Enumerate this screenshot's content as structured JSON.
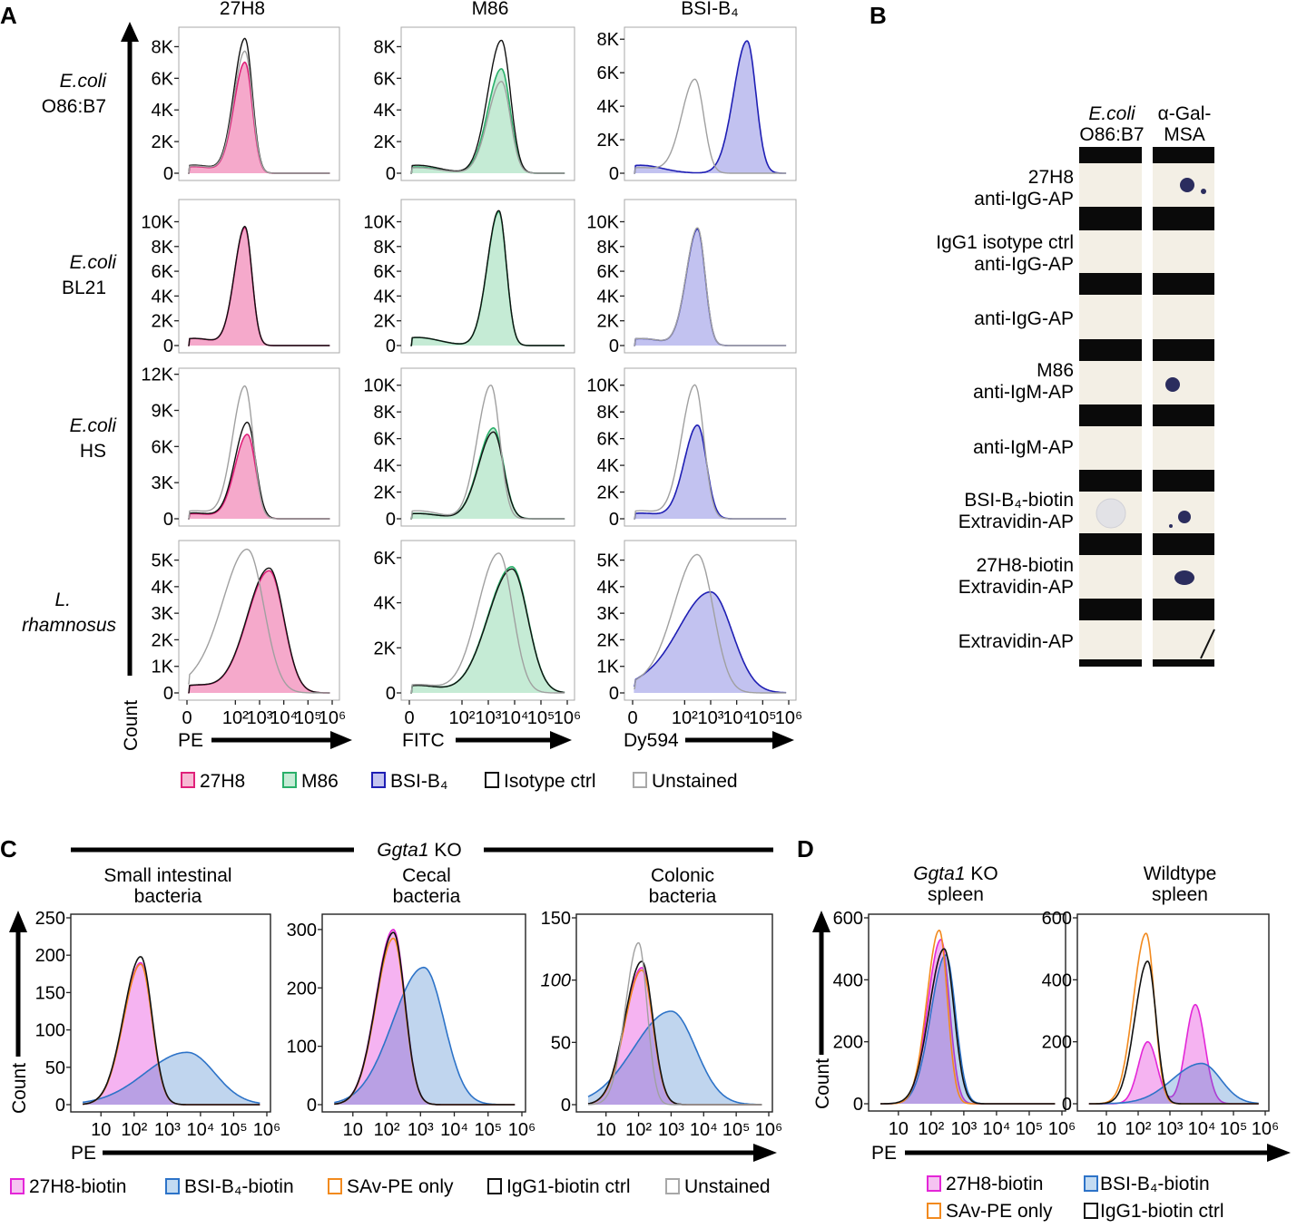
{
  "panels": {
    "a": "A",
    "b": "B",
    "c": "C",
    "d": "D"
  },
  "panel_a": {
    "columns": [
      "27H8",
      "M86",
      "BSI-B₄"
    ],
    "rows": [
      {
        "l1": "E.coli",
        "l2": "O86:B7"
      },
      {
        "l1": "E.coli",
        "l2": "BL21"
      },
      {
        "l1": "E.coli",
        "l2": "HS"
      },
      {
        "l1": "L.",
        "l2": "rhamnosus"
      }
    ],
    "count_label": "Count",
    "x_ticks": [
      "0",
      "10²",
      "10³",
      "10⁴",
      "10⁵",
      "10⁶"
    ],
    "x_labels": [
      "PE",
      "FITC",
      "Dy594"
    ],
    "legend": [
      {
        "label": "27H8",
        "color": "#e0217a"
      },
      {
        "label": "M86",
        "color": "#2ab06a"
      },
      {
        "label": "BSI-B₄",
        "color": "#1f1fb4"
      },
      {
        "label": "Isotype ctrl",
        "color": "#111111"
      },
      {
        "label": "Unstained",
        "color": "#a8a8a8"
      }
    ]
  },
  "chart_data": [
    {
      "type": "area",
      "panel": "A",
      "title": "27H8 — E.coli O86:B7",
      "xlabel": "PE",
      "ylabel": "Count",
      "yticks": [
        "0",
        "2K",
        "4K",
        "6K",
        "8K"
      ],
      "ylim": [
        0,
        9000
      ],
      "series": [
        {
          "name": "27H8",
          "mode": 2.4,
          "width": 0.4,
          "peak": 7000
        },
        {
          "name": "Isotype ctrl",
          "mode": 2.4,
          "width": 0.4,
          "peak": 8500
        },
        {
          "name": "Unstained",
          "mode": 2.4,
          "width": 0.4,
          "peak": 7700
        }
      ]
    },
    {
      "type": "area",
      "panel": "A",
      "title": "M86 — E.coli O86:B7",
      "xlabel": "FITC",
      "ylabel": "Count",
      "yticks": [
        "0",
        "2K",
        "4K",
        "6K",
        "8K"
      ],
      "ylim": [
        0,
        9000
      ],
      "series": [
        {
          "name": "M86",
          "mode": 3.5,
          "width": 0.45,
          "peak": 6600
        },
        {
          "name": "Isotype ctrl",
          "mode": 3.5,
          "width": 0.45,
          "peak": 8400
        },
        {
          "name": "Unstained",
          "mode": 3.5,
          "width": 0.45,
          "peak": 5800
        }
      ]
    },
    {
      "type": "area",
      "panel": "A",
      "title": "BSI-B₄ — E.coli O86:B7",
      "xlabel": "Dy594",
      "ylabel": "Count",
      "yticks": [
        "0",
        "2K",
        "4K",
        "6K",
        "8K"
      ],
      "ylim": [
        0,
        8500
      ],
      "series": [
        {
          "name": "BSI-B₄",
          "mode": 4.4,
          "width": 0.45,
          "peak": 7900
        },
        {
          "name": "Unstained",
          "mode": 2.4,
          "width": 0.45,
          "peak": 5600
        }
      ]
    },
    {
      "type": "area",
      "panel": "A",
      "title": "27H8 — E.coli BL21",
      "xlabel": "PE",
      "ylabel": "Count",
      "yticks": [
        "0",
        "2K",
        "4K",
        "6K",
        "8K",
        "10K"
      ],
      "ylim": [
        0,
        11500
      ],
      "series": [
        {
          "name": "27H8",
          "mode": 2.4,
          "width": 0.38,
          "peak": 9500
        },
        {
          "name": "Isotype ctrl",
          "mode": 2.4,
          "width": 0.38,
          "peak": 9600
        }
      ]
    },
    {
      "type": "area",
      "panel": "A",
      "title": "M86 — E.coli BL21",
      "xlabel": "FITC",
      "ylabel": "Count",
      "yticks": [
        "0",
        "2K",
        "4K",
        "6K",
        "8K",
        "10K"
      ],
      "ylim": [
        0,
        11500
      ],
      "series": [
        {
          "name": "M86",
          "mode": 3.4,
          "width": 0.38,
          "peak": 10800
        },
        {
          "name": "Isotype ctrl",
          "mode": 3.4,
          "width": 0.38,
          "peak": 10900
        }
      ]
    },
    {
      "type": "area",
      "panel": "A",
      "title": "BSI-B₄ — E.coli BL21",
      "xlabel": "Dy594",
      "ylabel": "Count",
      "yticks": [
        "0",
        "2K",
        "4K",
        "6K",
        "8K",
        "10K"
      ],
      "ylim": [
        0,
        11500
      ],
      "series": [
        {
          "name": "BSI-B₄",
          "mode": 2.5,
          "width": 0.38,
          "peak": 9400
        },
        {
          "name": "Unstained",
          "mode": 2.5,
          "width": 0.38,
          "peak": 9500
        }
      ]
    },
    {
      "type": "area",
      "panel": "A",
      "title": "27H8 — E.coli HS",
      "xlabel": "PE",
      "ylabel": "Count",
      "yticks": [
        "0",
        "3K",
        "6K",
        "9K",
        "12K"
      ],
      "ylim": [
        0,
        12200
      ],
      "series": [
        {
          "name": "27H8",
          "mode": 2.5,
          "width": 0.45,
          "peak": 7000
        },
        {
          "name": "Isotype ctrl",
          "mode": 2.5,
          "width": 0.45,
          "peak": 8000
        },
        {
          "name": "Unstained",
          "mode": 2.4,
          "width": 0.45,
          "peak": 11000
        }
      ]
    },
    {
      "type": "area",
      "panel": "A",
      "title": "M86 — E.coli HS",
      "xlabel": "FITC",
      "ylabel": "Count",
      "yticks": [
        "0",
        "2K",
        "4K",
        "6K",
        "8K",
        "10K"
      ],
      "ylim": [
        0,
        11000
      ],
      "series": [
        {
          "name": "M86",
          "mode": 3.2,
          "width": 0.5,
          "peak": 6800
        },
        {
          "name": "Isotype ctrl",
          "mode": 3.2,
          "width": 0.5,
          "peak": 6500
        },
        {
          "name": "Unstained",
          "mode": 3.1,
          "width": 0.45,
          "peak": 10000
        }
      ]
    },
    {
      "type": "area",
      "panel": "A",
      "title": "BSI-B₄ — E.coli HS",
      "xlabel": "Dy594",
      "ylabel": "Count",
      "yticks": [
        "0",
        "2K",
        "4K",
        "6K",
        "8K",
        "10K"
      ],
      "ylim": [
        0,
        11000
      ],
      "series": [
        {
          "name": "BSI-B₄",
          "mode": 2.5,
          "width": 0.45,
          "peak": 7000
        },
        {
          "name": "Unstained",
          "mode": 2.4,
          "width": 0.45,
          "peak": 10000
        }
      ]
    },
    {
      "type": "area",
      "panel": "A",
      "title": "27H8 — L. rhamnosus",
      "xlabel": "PE",
      "ylabel": "Count",
      "yticks": [
        "0",
        "1K",
        "2K",
        "3K",
        "4K",
        "5K"
      ],
      "ylim": [
        0,
        5600
      ],
      "series": [
        {
          "name": "27H8",
          "mode": 3.4,
          "width": 0.8,
          "peak": 4600
        },
        {
          "name": "Isotype ctrl",
          "mode": 3.4,
          "width": 0.8,
          "peak": 4700
        },
        {
          "name": "Unstained",
          "mode": 2.5,
          "width": 0.9,
          "peak": 5400
        }
      ]
    },
    {
      "type": "area",
      "panel": "A",
      "title": "M86 — L. rhamnosus",
      "xlabel": "FITC",
      "ylabel": "Count",
      "yticks": [
        "0",
        "2K",
        "4K",
        "6K"
      ],
      "ylim": [
        0,
        6600
      ],
      "series": [
        {
          "name": "M86",
          "mode": 3.9,
          "width": 0.8,
          "peak": 5600
        },
        {
          "name": "Isotype ctrl",
          "mode": 3.9,
          "width": 0.8,
          "peak": 5500
        },
        {
          "name": "Unstained",
          "mode": 3.4,
          "width": 0.7,
          "peak": 6200
        }
      ]
    },
    {
      "type": "area",
      "panel": "A",
      "title": "BSI-B₄ — L. rhamnosus",
      "xlabel": "Dy594",
      "ylabel": "Count",
      "yticks": [
        "0",
        "1K",
        "2K",
        "3K",
        "4K",
        "5K"
      ],
      "ylim": [
        0,
        5600
      ],
      "series": [
        {
          "name": "BSI-B₄",
          "mode": 3.0,
          "width": 1.1,
          "peak": 3800
        },
        {
          "name": "Unstained",
          "mode": 2.5,
          "width": 0.8,
          "peak": 5200
        }
      ]
    },
    {
      "type": "area",
      "panel": "C",
      "title": "Small intestinal bacteria",
      "xlabel": "PE",
      "ylabel": "Count",
      "yticks": [
        "0",
        "50",
        "100",
        "150",
        "200",
        "250"
      ],
      "ylim": [
        0,
        250
      ],
      "xticks": [
        "10",
        "10²",
        "10³",
        "10⁴",
        "10⁵",
        "10⁶"
      ],
      "series": [
        {
          "name": "27H8-biotin",
          "mode": 2.2,
          "width": 0.45,
          "peak": 190
        },
        {
          "name": "BSI-B₄-biotin",
          "mode": 3.6,
          "width": 1.1,
          "peak": 70
        },
        {
          "name": "SAv-PE only",
          "mode": 2.2,
          "width": 0.45,
          "peak": 188
        },
        {
          "name": "IgG1-biotin ctrl",
          "mode": 2.2,
          "width": 0.45,
          "peak": 198
        }
      ]
    },
    {
      "type": "area",
      "panel": "C",
      "title": "Cecal bacteria",
      "xlabel": "PE",
      "ylabel": "Count",
      "yticks": [
        "0",
        "100",
        "200",
        "300"
      ],
      "ylim": [
        0,
        320
      ],
      "xticks": [
        "10",
        "10²",
        "10³",
        "10⁴",
        "10⁵",
        "10⁶"
      ],
      "series": [
        {
          "name": "27H8-biotin",
          "mode": 2.2,
          "width": 0.45,
          "peak": 300
        },
        {
          "name": "BSI-B₄-biotin",
          "mode": 3.1,
          "width": 0.8,
          "peak": 235
        },
        {
          "name": "SAv-PE only",
          "mode": 2.2,
          "width": 0.45,
          "peak": 285
        },
        {
          "name": "IgG1-biotin ctrl",
          "mode": 2.2,
          "width": 0.45,
          "peak": 295
        }
      ]
    },
    {
      "type": "area",
      "panel": "C",
      "title": "Colonic bacteria",
      "xlabel": "PE",
      "ylabel": "Count",
      "yticks": [
        "0",
        "50",
        "100",
        "150"
      ],
      "ylim": [
        0,
        150
      ],
      "xticks": [
        "10",
        "10²",
        "10³",
        "10⁴",
        "10⁵",
        "10⁶"
      ],
      "series": [
        {
          "name": "27H8-biotin",
          "mode": 2.1,
          "width": 0.45,
          "peak": 110
        },
        {
          "name": "BSI-B₄-biotin",
          "mode": 3.0,
          "width": 1.0,
          "peak": 75
        },
        {
          "name": "SAv-PE only",
          "mode": 2.1,
          "width": 0.45,
          "peak": 108
        },
        {
          "name": "IgG1-biotin ctrl",
          "mode": 2.1,
          "width": 0.45,
          "peak": 115
        },
        {
          "name": "Unstained",
          "mode": 2.0,
          "width": 0.35,
          "peak": 130
        }
      ]
    },
    {
      "type": "area",
      "panel": "D",
      "title": "Ggta1 KO spleen",
      "xlabel": "PE",
      "ylabel": "Count",
      "yticks": [
        "0",
        "200",
        "400",
        "600"
      ],
      "ylim": [
        0,
        600
      ],
      "xticks": [
        "10",
        "10²",
        "10³",
        "10⁴",
        "10⁵",
        "10⁶"
      ],
      "series": [
        {
          "name": "27H8-biotin",
          "mode": 2.3,
          "width": 0.35,
          "peak": 530
        },
        {
          "name": "BSI-B₄-biotin",
          "mode": 2.45,
          "width": 0.4,
          "peak": 480
        },
        {
          "name": "SAv-PE only",
          "mode": 2.25,
          "width": 0.33,
          "peak": 560
        },
        {
          "name": "IgG1-biotin ctrl",
          "mode": 2.4,
          "width": 0.4,
          "peak": 500
        }
      ]
    },
    {
      "type": "area",
      "panel": "D",
      "title": "Wildtype spleen",
      "xlabel": "PE",
      "ylabel": "Count",
      "yticks": [
        "0",
        "200",
        "400",
        "600"
      ],
      "ylim": [
        0,
        600
      ],
      "xticks": [
        "10",
        "10²",
        "10³",
        "10⁴",
        "10⁵",
        "10⁶"
      ],
      "series": [
        {
          "name": "27H8-biotin",
          "modes": [
            2.3,
            3.8
          ],
          "width": 0.3,
          "peaks": [
            200,
            320
          ]
        },
        {
          "name": "BSI-B₄-biotin",
          "mode": 4.0,
          "width": 0.8,
          "peak": 130
        },
        {
          "name": "SAv-PE only",
          "mode": 2.25,
          "width": 0.35,
          "peak": 550
        },
        {
          "name": "IgG1-biotin ctrl",
          "mode": 2.3,
          "width": 0.35,
          "peak": 460
        }
      ]
    }
  ],
  "panel_b": {
    "col1_l1": "E.coli",
    "col1_l2": "O86:B7",
    "col2_l1": "α-Gal-",
    "col2_l2": "MSA",
    "rows": [
      {
        "l1": "27H8",
        "l2": "anti-IgG-AP"
      },
      {
        "l1": "IgG1 isotype ctrl",
        "l2": "anti-IgG-AP"
      },
      {
        "l1": "",
        "l2": "anti-IgG-AP"
      },
      {
        "l1": "M86",
        "l2": "anti-IgM-AP"
      },
      {
        "l1": "",
        "l2": "anti-IgM-AP"
      },
      {
        "l1": "BSI-B₄-biotin",
        "l2": "Extravidin-AP"
      },
      {
        "l1": "27H8-biotin",
        "l2": "Extravidin-AP"
      },
      {
        "l1": "",
        "l2": "Extravidin-AP"
      }
    ]
  },
  "panel_c": {
    "header": "Ggta1 KO",
    "titles": [
      {
        "l1": "Small intestinal",
        "l2": "bacteria"
      },
      {
        "l1": "Cecal",
        "l2": "bacteria"
      },
      {
        "l1": "Colonic",
        "l2": "bacteria"
      }
    ],
    "count_label": "Count",
    "x_label": "PE",
    "legend": [
      {
        "label": "27H8-biotin",
        "color": "#e326d7"
      },
      {
        "label": "BSI-B₄-biotin",
        "color": "#2d73c8"
      },
      {
        "label": "SAv-PE only",
        "color": "#f28a1e"
      },
      {
        "label": "IgG1-biotin ctrl",
        "color": "#111111"
      },
      {
        "label": "Unstained",
        "color": "#a8a8a8"
      }
    ]
  },
  "panel_d": {
    "titles": [
      {
        "l1": "Ggta1 KO",
        "l2": "spleen"
      },
      {
        "l1": "Wildtype",
        "l2": "spleen"
      }
    ],
    "count_label": "Count",
    "x_label": "PE",
    "legend": [
      {
        "label": "27H8-biotin",
        "color": "#e326d7"
      },
      {
        "label": "BSI-B₄-biotin",
        "color": "#2d73c8"
      },
      {
        "label": "SAv-PE only",
        "color": "#f28a1e"
      },
      {
        "label": "IgG1-biotin ctrl",
        "color": "#111111"
      }
    ]
  }
}
